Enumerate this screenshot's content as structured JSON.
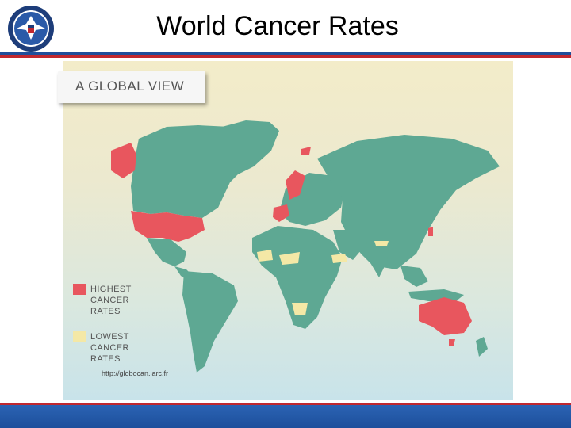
{
  "slide": {
    "title": "World Cancer Rates"
  },
  "map": {
    "banner_label": "A GLOBAL VIEW",
    "legend": [
      {
        "label_lines": [
          "HIGHEST",
          "CANCER",
          "RATES"
        ],
        "color": "#e8565e"
      },
      {
        "label_lines": [
          "LOWEST",
          "CANCER",
          "RATES"
        ],
        "color": "#f4e8a6"
      }
    ],
    "land_color": "#5ea893",
    "source": "http://globocan.iarc.fr"
  },
  "colors": {
    "header_rule_blue": "#1f4e9a",
    "header_rule_red": "#c0282f",
    "footer_blue": "#1d4f9c"
  }
}
